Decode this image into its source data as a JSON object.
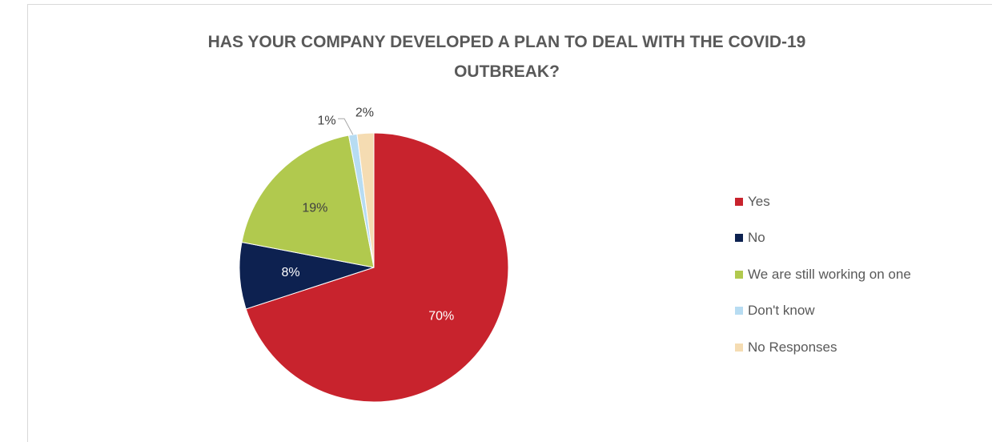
{
  "chart_data": {
    "type": "pie",
    "title": "HAS YOUR COMPANY DEVELOPED A PLAN TO DEAL WITH THE COVID-19\nOUTBREAK?",
    "categories": [
      "Yes",
      "No",
      "We are still working on one",
      "Don't know",
      "No Responses"
    ],
    "values": [
      70,
      8,
      19,
      1,
      2
    ],
    "data_labels": [
      "70%",
      "8%",
      "19%",
      "1%",
      "2%"
    ],
    "colors": [
      "#c8232d",
      "#0d2150",
      "#b1c94e",
      "#b7dcf2",
      "#f5dcb2"
    ],
    "legend_position": "right"
  }
}
